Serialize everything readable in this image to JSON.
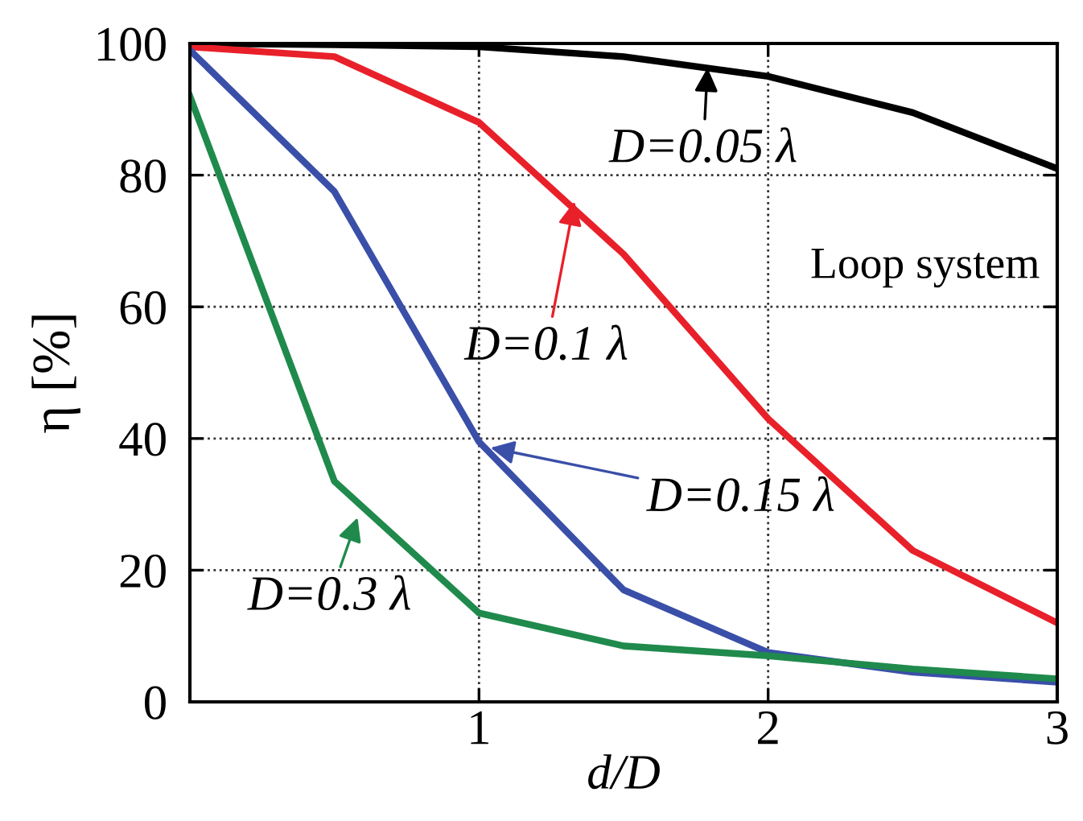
{
  "chart_data": {
    "type": "line",
    "xlabel": "d/D",
    "ylabel": "η [%]",
    "x": [
      0,
      0.5,
      1,
      1.5,
      2,
      2.5,
      3
    ],
    "series": [
      {
        "color": "#000000",
        "values": [
          100,
          99.8,
          99.5,
          98,
          95,
          89.5,
          81
        ]
      },
      {
        "color": "#e8202a",
        "values": [
          99.5,
          98,
          88,
          68,
          43,
          23,
          12
        ]
      },
      {
        "color": "#3a4fa8",
        "values": [
          99,
          77.5,
          39.5,
          17,
          7.5,
          4.5,
          3
        ]
      },
      {
        "color": "#1f8a4c",
        "values": [
          92,
          33.5,
          13.5,
          8.5,
          7,
          5,
          3.5
        ]
      }
    ],
    "xlim": [
      0,
      3
    ],
    "xticks": [
      1,
      2,
      3
    ],
    "ylim": [
      0,
      100
    ],
    "yticks": [
      0,
      20,
      40,
      60,
      80,
      100
    ],
    "grid": true,
    "legend": false,
    "marker": "none",
    "line_style": "solid",
    "annotations": [
      {
        "text": "D=0.05 λ",
        "x": 1.79,
        "y": 96.3
      },
      {
        "text": "D=0.1 λ",
        "x": 1.33,
        "y": 76
      },
      {
        "text": "D=0.15 λ",
        "x": 1.04,
        "y": 38.6
      },
      {
        "text": "D=0.3 λ",
        "x": 0.58,
        "y": 28
      },
      "Loop system"
    ]
  }
}
